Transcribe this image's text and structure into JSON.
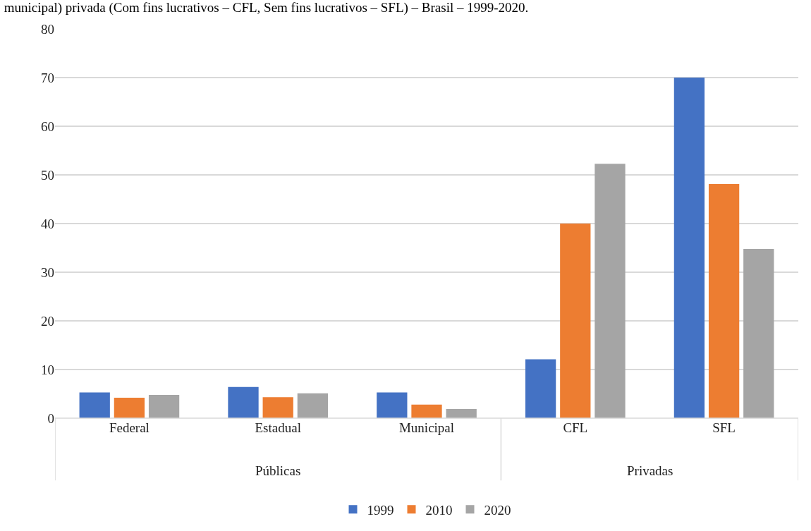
{
  "chart_data": {
    "type": "bar",
    "title": "municipal) privada (Com fins lucrativos – CFL, Sem fins lucrativos – SFL) – Brasil – 1999-2020.",
    "categories": [
      "Federal",
      "Estadual",
      "Municipal",
      "CFL",
      "SFL"
    ],
    "series": [
      {
        "name": "1999",
        "color": "#4472c4",
        "values": [
          5.3,
          6.4,
          5.3,
          12.1,
          70
        ]
      },
      {
        "name": "2010",
        "color": "#ed7d31",
        "values": [
          4.2,
          4.3,
          2.8,
          40,
          48.1
        ]
      },
      {
        "name": "2020",
        "color": "#a5a5a5",
        "values": [
          4.8,
          5.1,
          1.9,
          52.3,
          34.8
        ]
      }
    ],
    "annotations": [
      "Públicas",
      "Privadas"
    ],
    "ylim": [
      0,
      80
    ],
    "yticks": [
      0,
      10,
      20,
      30,
      40,
      50,
      60,
      70,
      80
    ],
    "grid": "y",
    "legend": "bottom"
  }
}
